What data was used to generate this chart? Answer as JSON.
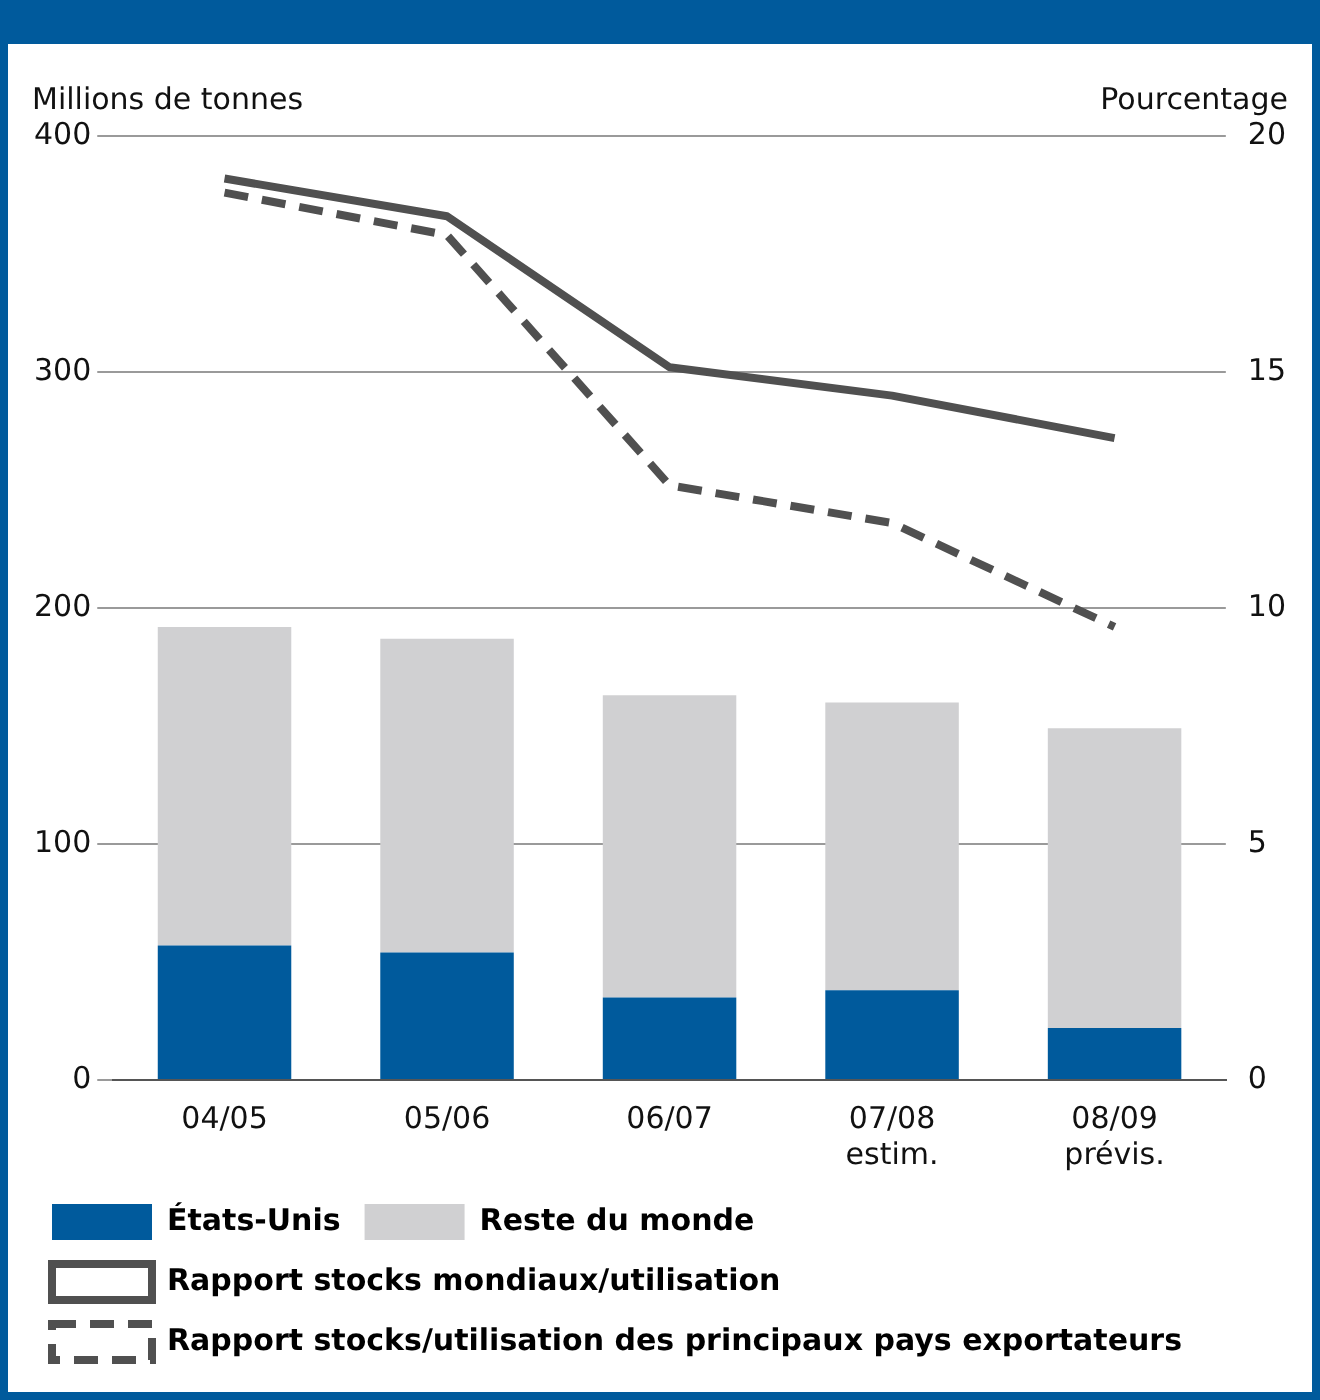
{
  "chart_data": {
    "type": "bar",
    "stacked": true,
    "ylabel": "Millions de tonnes",
    "y2label": "Pourcentage",
    "categories": [
      "04/05",
      "05/06",
      "06/07",
      "07/08\nestim.",
      "08/09\nprévis."
    ],
    "series": [
      {
        "name": "États-Unis",
        "color": "#005a9c",
        "values": [
          57,
          54,
          35,
          38,
          22
        ]
      },
      {
        "name": "Reste du monde",
        "color": "#d0d0d2",
        "values": [
          135,
          133,
          128,
          122,
          127
        ]
      },
      {
        "name": "Rapport stocks mondiaux/utilisation",
        "type": "line",
        "axis": "y2",
        "color": "#505050",
        "line_style": "solid",
        "values": [
          19.1,
          18.3,
          15.1,
          14.5,
          13.6
        ]
      },
      {
        "name": "Rapport stocks/utilisation des principaux pays exportateurs",
        "type": "line",
        "axis": "y2",
        "color": "#505050",
        "line_style": "dashed",
        "values": [
          18.8,
          17.9,
          12.6,
          11.8,
          9.6
        ]
      }
    ],
    "ylim": [
      0,
      400
    ],
    "yticks": [
      0,
      100,
      200,
      300,
      400
    ],
    "y2lim": [
      0,
      20
    ],
    "y2ticks": [
      0,
      5,
      10,
      15,
      20
    ],
    "grid": "y",
    "legend": "bottom",
    "marker": "none"
  }
}
